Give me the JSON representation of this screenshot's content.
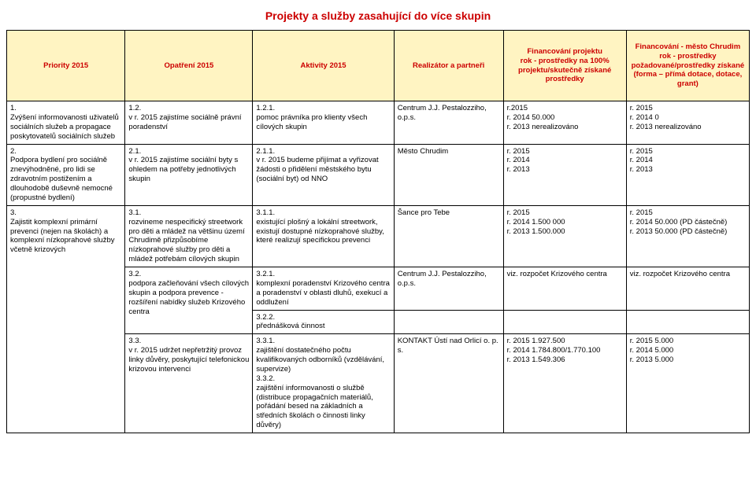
{
  "title": "Projekty a služby zasahující do více skupin",
  "colors": {
    "header_bg": "#fff4c2",
    "accent": "#cc0000",
    "border": "#000000",
    "background": "#ffffff"
  },
  "columns": [
    "Priority 2015",
    "Opatření 2015",
    "Aktivity 2015",
    "Realizátor a partneři",
    "Financování projektu\nrok - prostředky na 100% projektu/skutečně získané prostředky",
    "Financování - město Chrudim\nrok - prostředky požadované/prostředky získané (forma – přímá dotace, dotace, grant)"
  ],
  "rows": [
    {
      "priority": "1.\nZvýšení informovanosti uživatelů sociálních služeb a propagace poskytovatelů sociálních služeb",
      "opatreni": "1.2.\nv r. 2015 zajistíme sociálně právní poradenství",
      "aktivity": "1.2.1.\npomoc právníka pro klienty všech cílových skupin",
      "realizator": "Centrum J.J. Pestalozziho, o.p.s.",
      "fin_projekt": "r.2015\nr. 2014 50.000\nr. 2013 nerealizováno",
      "fin_mesto": "r. 2015\nr. 2014 0\nr. 2013 nerealizováno"
    },
    {
      "priority": "2.\nPodpora bydlení pro sociálně znevýhodněné, pro lidi se zdravotním postižením a dlouhodobě duševně nemocné (propustné bydlení)",
      "opatreni": "2.1.\nv r. 2015 zajistíme sociální byty s ohledem na potřeby jednotlivých skupin",
      "aktivity": "2.1.1.\nv r. 2015 budeme přijímat a vyřizovat žádosti o přidělení městského bytu (sociální byt) od NNO",
      "realizator": "Město Chrudim",
      "fin_projekt": "r. 2015\nr. 2014\nr. 2013",
      "fin_mesto": "r. 2015\nr. 2014\nr. 2013"
    },
    {
      "priority": "3.\nZajistit komplexní primární prevenci (nejen na školách) a komplexní nízkoprahové služby včetně krizových",
      "priority_rowspan": 4,
      "opatreni": "3.1.\nrozvineme nespecifický streetwork pro děti a mládež na většinu území Chrudimě přizpůsobíme nízkoprahové služby pro děti a mládež potřebám cílových skupin",
      "aktivity": "3.1.1.\nexistující plošný a lokální streetwork, existují dostupné nízkoprahové služby, které realizují specifickou prevenci",
      "realizator": "Šance pro Tebe",
      "fin_projekt": "r. 2015\nr. 2014  1.500 000\nr. 2013  1.500.000",
      "fin_mesto": "r. 2015\nr. 2014  50.000 (PD částečně)\nr. 2013  50.000 (PD částečně)"
    },
    {
      "opatreni": "3.2.\npodpora začleňování všech cílových skupin a podpora prevence - rozšíření nabídky služeb Krizového centra",
      "opatreni_rowspan": 2,
      "aktivity": "3.2.1.\nkomplexní poradenství Krizového centra a poradenství v oblasti dluhů, exekucí a oddlužení",
      "realizator": "Centrum J.J. Pestalozziho, o.p.s.",
      "fin_projekt": "viz. rozpočet Krizového centra",
      "fin_mesto": "viz. rozpočet Krizového centra"
    },
    {
      "aktivity": "3.2.2.\npřednášková činnost",
      "realizator": "",
      "fin_projekt": "",
      "fin_mesto": ""
    },
    {
      "opatreni": "3.3.\nv r. 2015 udržet nepřetržitý provoz linky důvěry, poskytující telefonickou krizovou intervenci",
      "aktivity": "3.3.1.\nzajištění dostatečného počtu kvalifikovaných odborníků (vzdělávání, supervize)\n3.3.2.\nzajištění informovanosti o službě (distribuce propagačních materiálů, pořádání besed na základních a středních školách o činnosti linky důvěry)",
      "realizator": "KONTAKT Ústí nad Orlicí o. p. s.",
      "fin_projekt": "r. 2015 1.927.500\nr. 2014 1.784.800/1.770.100\nr. 2013 1.549.306",
      "fin_mesto": "r. 2015  5.000\nr. 2014  5.000\nr. 2013  5.000"
    }
  ]
}
